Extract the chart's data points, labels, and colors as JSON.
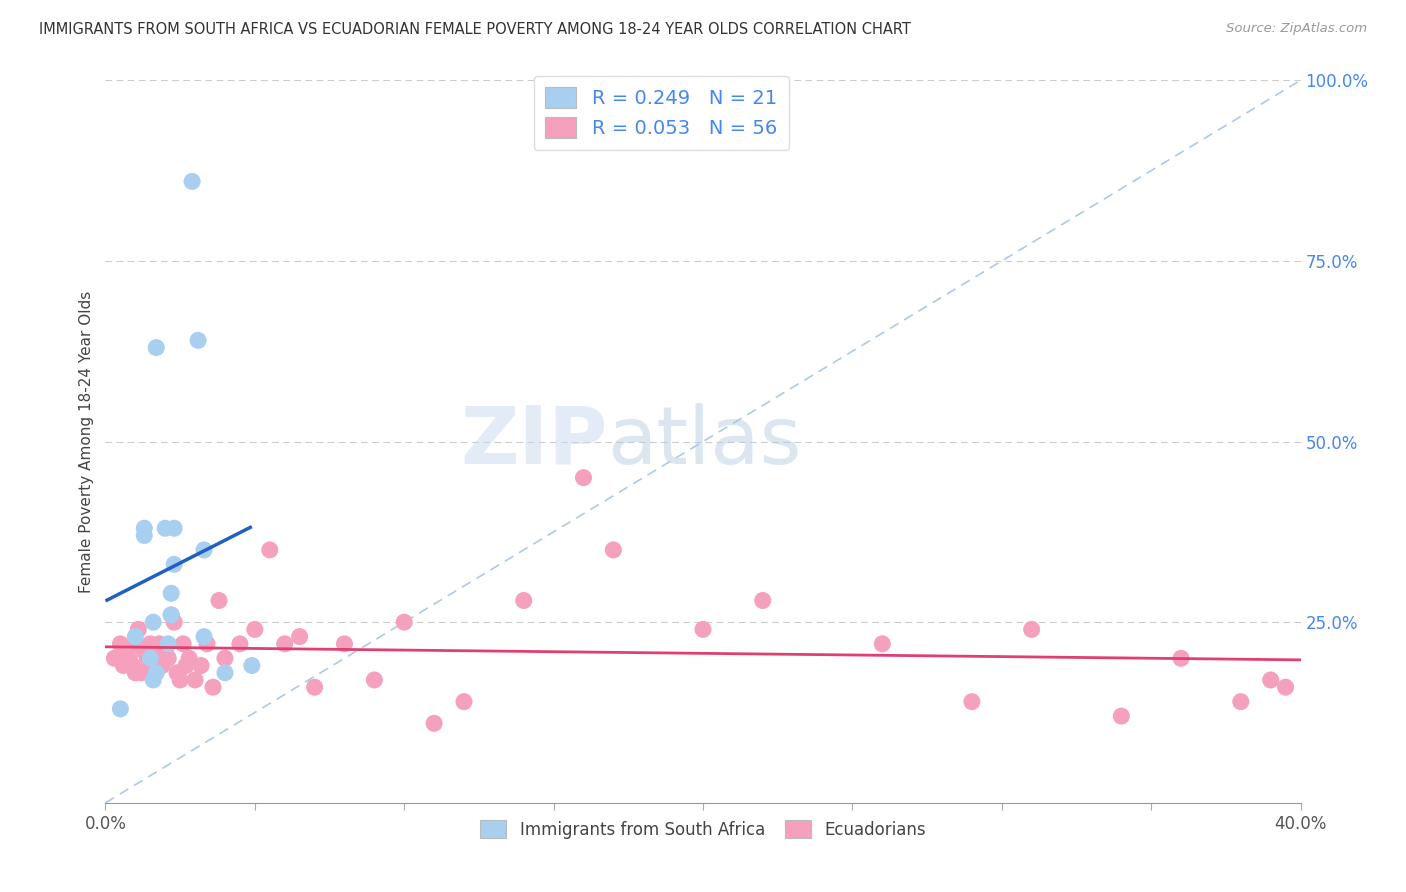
{
  "title": "IMMIGRANTS FROM SOUTH AFRICA VS ECUADORIAN FEMALE POVERTY AMONG 18-24 YEAR OLDS CORRELATION CHART",
  "source": "Source: ZipAtlas.com",
  "ylabel": "Female Poverty Among 18-24 Year Olds",
  "xlim": [
    0.0,
    0.4
  ],
  "ylim": [
    0.0,
    1.0
  ],
  "R_blue": 0.249,
  "N_blue": 21,
  "R_pink": 0.053,
  "N_pink": 56,
  "legend_label_blue": "Immigrants from South Africa",
  "legend_label_pink": "Ecuadorians",
  "color_blue": "#a8cef0",
  "color_blue_line": "#2060c0",
  "color_pink": "#f5a0bc",
  "color_pink_line": "#e04070",
  "color_diag": "#a0c0e0",
  "watermark_zip": "ZIP",
  "watermark_atlas": "atlas",
  "blue_scatter_x": [
    0.005,
    0.01,
    0.013,
    0.013,
    0.015,
    0.016,
    0.016,
    0.017,
    0.017,
    0.02,
    0.021,
    0.022,
    0.022,
    0.023,
    0.023,
    0.029,
    0.031,
    0.033,
    0.033,
    0.04,
    0.049
  ],
  "blue_scatter_y": [
    0.13,
    0.23,
    0.38,
    0.37,
    0.2,
    0.25,
    0.17,
    0.63,
    0.18,
    0.38,
    0.22,
    0.29,
    0.26,
    0.38,
    0.33,
    0.86,
    0.64,
    0.35,
    0.23,
    0.18,
    0.19
  ],
  "pink_scatter_x": [
    0.003,
    0.005,
    0.006,
    0.007,
    0.008,
    0.009,
    0.01,
    0.01,
    0.011,
    0.012,
    0.013,
    0.014,
    0.015,
    0.016,
    0.017,
    0.018,
    0.019,
    0.02,
    0.021,
    0.022,
    0.023,
    0.024,
    0.025,
    0.026,
    0.027,
    0.028,
    0.03,
    0.032,
    0.034,
    0.036,
    0.038,
    0.04,
    0.045,
    0.05,
    0.055,
    0.06,
    0.065,
    0.07,
    0.08,
    0.09,
    0.1,
    0.11,
    0.12,
    0.14,
    0.16,
    0.17,
    0.2,
    0.22,
    0.26,
    0.29,
    0.31,
    0.34,
    0.36,
    0.38,
    0.39,
    0.395
  ],
  "pink_scatter_y": [
    0.2,
    0.22,
    0.19,
    0.21,
    0.2,
    0.19,
    0.22,
    0.18,
    0.24,
    0.18,
    0.21,
    0.2,
    0.22,
    0.19,
    0.2,
    0.22,
    0.19,
    0.21,
    0.2,
    0.26,
    0.25,
    0.18,
    0.17,
    0.22,
    0.19,
    0.2,
    0.17,
    0.19,
    0.22,
    0.16,
    0.28,
    0.2,
    0.22,
    0.24,
    0.35,
    0.22,
    0.23,
    0.16,
    0.22,
    0.17,
    0.25,
    0.11,
    0.14,
    0.28,
    0.45,
    0.35,
    0.24,
    0.28,
    0.22,
    0.14,
    0.24,
    0.12,
    0.2,
    0.14,
    0.17,
    0.16
  ]
}
